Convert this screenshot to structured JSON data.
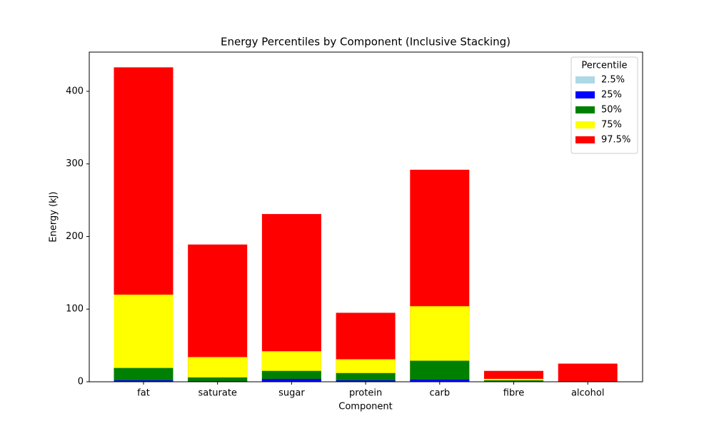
{
  "chart_data": {
    "type": "bar",
    "title": "Energy Percentiles by Component (Inclusive Stacking)",
    "x_label": "Component",
    "y_label": "Energy (kJ)",
    "categories": [
      "fat",
      "saturate",
      "sugar",
      "protein",
      "carb",
      "fibre",
      "alcohol"
    ],
    "legend_title": "Percentile",
    "legend_position": "upper-right",
    "series": [
      {
        "name": "2.5%",
        "color": "#add8e6",
        "values": [
          0.5,
          0.3,
          0.5,
          0.3,
          0.5,
          0,
          0
        ]
      },
      {
        "name": "25%",
        "color": "#0000ff",
        "values": [
          2,
          1,
          4,
          2,
          3,
          0.5,
          0
        ]
      },
      {
        "name": "50%",
        "color": "#008000",
        "values": [
          19,
          6,
          15,
          12,
          29,
          2,
          0
        ]
      },
      {
        "name": "75%",
        "color": "#ffff00",
        "values": [
          120,
          34,
          42,
          31,
          104,
          4,
          0
        ]
      },
      {
        "name": "97.5%",
        "color": "#ff0000",
        "values": [
          433,
          189,
          231,
          95,
          292,
          15,
          25
        ]
      }
    ],
    "ylim": [
      0,
      454
    ],
    "yticks": [
      0,
      100,
      200,
      300,
      400
    ]
  }
}
